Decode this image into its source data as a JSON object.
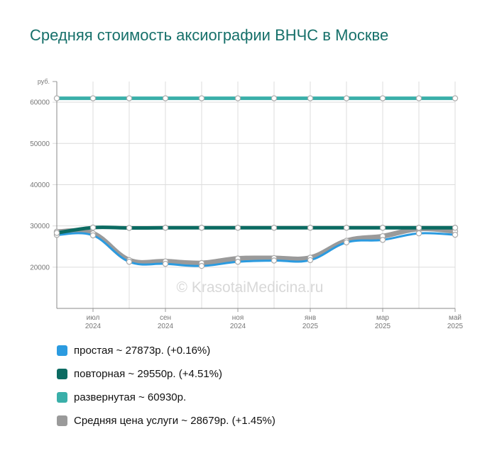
{
  "title": "Средняя стоимость аксиографии ВНЧС в Москве",
  "watermark": "© KrasotaiMedicina.ru",
  "chart_data": {
    "type": "line",
    "y_unit": "руб.",
    "ylim": [
      10000,
      65000
    ],
    "yticks": [
      20000,
      30000,
      40000,
      50000,
      60000
    ],
    "grid": true,
    "legend_position": "bottom",
    "x": [
      "2024-06",
      "2024-07",
      "2024-08",
      "2024-09",
      "2024-10",
      "2024-11",
      "2024-12",
      "2025-01",
      "2025-02",
      "2025-03",
      "2025-04",
      "2025-05"
    ],
    "x_tick_labels": [
      {
        "month": "июл",
        "year": "2024",
        "index": 1
      },
      {
        "month": "сен",
        "year": "2024",
        "index": 3
      },
      {
        "month": "ноя",
        "year": "2024",
        "index": 5
      },
      {
        "month": "янв",
        "year": "2025",
        "index": 7
      },
      {
        "month": "мар",
        "year": "2025",
        "index": 9
      },
      {
        "month": "май",
        "year": "2025",
        "index": 11
      }
    ],
    "series": [
      {
        "name": "развернутая",
        "color": "#3aafa9",
        "width": 5,
        "values": [
          60930,
          60930,
          60930,
          60930,
          60930,
          60930,
          60930,
          60930,
          60930,
          60930,
          60930,
          60930
        ]
      },
      {
        "name": "Средняя цена услуги",
        "color": "#9a9a9a",
        "width": 7,
        "values": [
          28600,
          28200,
          21700,
          21400,
          21000,
          22100,
          22200,
          22300,
          26400,
          27500,
          29300,
          28700
        ]
      },
      {
        "name": "простая",
        "color": "#2b9be0",
        "width": 3,
        "values": [
          27800,
          27700,
          21300,
          20800,
          20300,
          21300,
          21600,
          21700,
          26000,
          26600,
          28200,
          27850
        ]
      },
      {
        "name": "повторная",
        "color": "#0b6b62",
        "width": 5,
        "values": [
          28300,
          29600,
          29500,
          29550,
          29550,
          29550,
          29550,
          29550,
          29550,
          29550,
          29550,
          29550
        ]
      }
    ]
  },
  "legend": [
    {
      "label": "простая ~ 27873р. (+0.16%)",
      "color": "#2b9be0"
    },
    {
      "label": "повторная ~ 29550р. (+4.51%)",
      "color": "#0b6b62"
    },
    {
      "label": "развернутая ~ 60930р.",
      "color": "#3aafa9"
    },
    {
      "label": "Средняя цена услуги ~ 28679р. (+1.45%)",
      "color": "#9a9a9a"
    }
  ]
}
